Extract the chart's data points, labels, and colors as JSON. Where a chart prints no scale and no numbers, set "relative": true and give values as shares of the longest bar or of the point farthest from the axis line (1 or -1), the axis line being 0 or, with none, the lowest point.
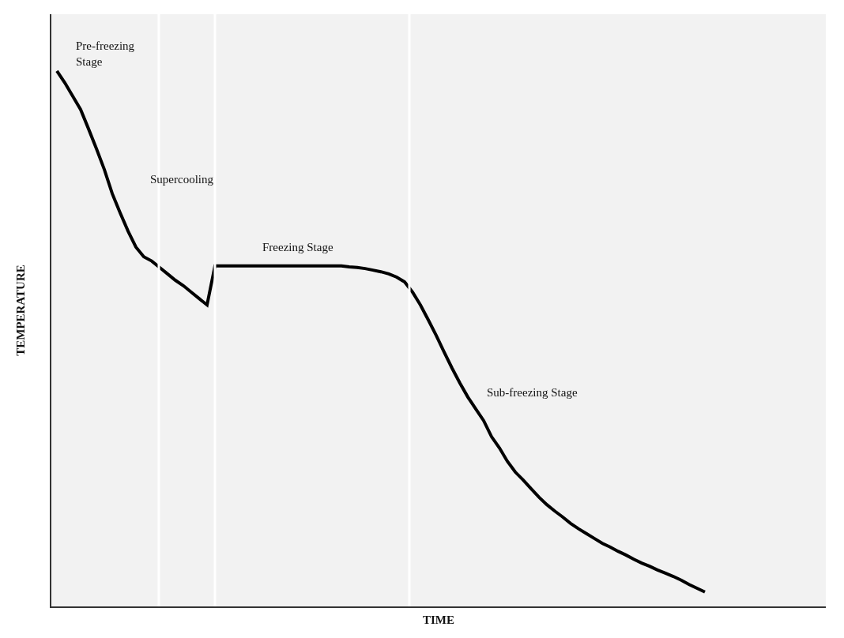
{
  "chart_data": {
    "type": "line",
    "relative": true,
    "xlabel": "TIME",
    "ylabel": "TEMPERATURE",
    "categories": [
      null,
      null,
      null,
      null,
      null,
      null,
      null,
      null,
      null,
      null,
      null,
      null,
      null,
      null,
      null,
      null,
      null,
      null,
      null,
      null,
      null,
      null,
      null,
      null,
      null,
      null,
      null,
      null,
      null,
      null,
      null,
      null,
      null,
      null,
      null,
      null,
      null,
      null,
      null,
      null,
      null,
      null,
      null,
      null,
      null,
      null,
      null,
      null,
      null,
      null,
      null,
      null,
      null,
      null,
      null,
      null,
      null,
      null,
      null,
      null,
      null,
      null,
      null,
      null,
      null,
      null,
      null,
      null,
      null,
      null,
      null,
      null,
      null,
      null,
      null,
      null,
      null,
      null,
      null,
      null,
      null,
      null,
      null
    ],
    "series": [
      {
        "color": "#000000",
        "values": [
          1,
          0.978,
          0.953,
          0.928,
          0.892,
          0.855,
          0.816,
          0.771,
          0.735,
          0.701,
          0.671,
          0.653,
          0.645,
          0.633,
          0.621,
          0.609,
          0.599,
          0.587,
          0.575,
          0.563,
          0.636,
          0.636,
          0.636,
          0.636,
          0.636,
          0.636,
          0.636,
          0.636,
          0.636,
          0.636,
          0.636,
          0.636,
          0.636,
          0.636,
          0.636,
          0.636,
          0.636,
          0.634,
          0.633,
          0.631,
          0.628,
          0.625,
          0.621,
          0.615,
          0.606,
          0.587,
          0.563,
          0.535,
          0.506,
          0.475,
          0.445,
          0.417,
          0.391,
          0.369,
          0.347,
          0.317,
          0.296,
          0.271,
          0.251,
          0.236,
          0.22,
          0.204,
          0.19,
          0.178,
          0.167,
          0.155,
          0.145,
          0.136,
          0.127,
          0.118,
          0.111,
          0.103,
          0.096,
          0.088,
          0.081,
          0.075,
          0.068,
          0.062,
          0.056,
          0.049,
          0.041,
          0.034,
          0.027
        ]
      }
    ],
    "annotations": [
      "Pre-freezing\nStage",
      "Supercooling",
      "Freezing Stage",
      "Sub-freezing Stage"
    ],
    "marker": "none",
    "line_style": "solid"
  }
}
